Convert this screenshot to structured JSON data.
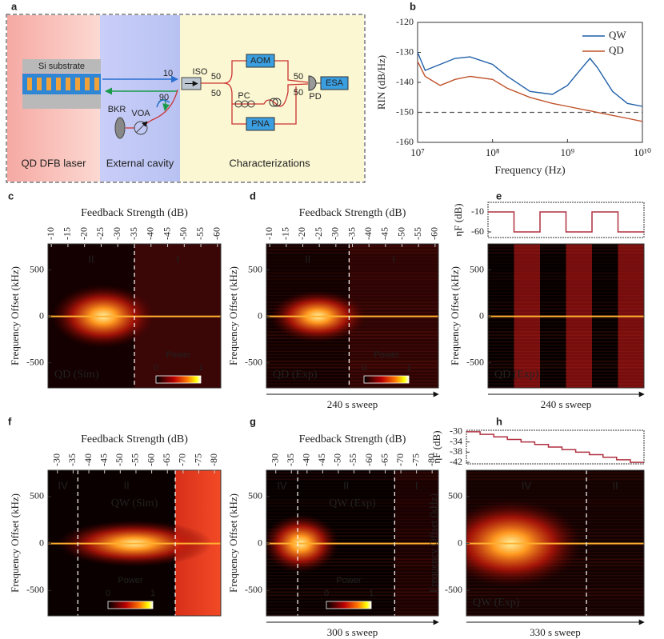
{
  "panel_labels": [
    "a",
    "b",
    "c",
    "d",
    "e",
    "f",
    "g",
    "h"
  ],
  "diagram": {
    "sections": [
      "QD DFB laser",
      "External cavity",
      "Characterizations"
    ],
    "substrate": "Si substrate",
    "ratios": [
      "10",
      "90"
    ],
    "isolator": "ISO",
    "couplers": [
      "50",
      "50",
      "50",
      "50"
    ],
    "aom": "AOM",
    "pc": "PC",
    "pd": "PD",
    "esa": "ESA",
    "pna": "PNA",
    "bkr": "BKR",
    "voa": "VOA"
  },
  "chart_data": [
    {
      "type": "line",
      "x_label": "Frequency (Hz)",
      "y_label": "RIN (dB/Hz)",
      "log_x": true,
      "xlim": [
        10000000,
        10000000000
      ],
      "xticks": [
        {
          "value": 10000000,
          "label": "10⁷"
        },
        {
          "value": 100000000,
          "label": "10⁸"
        },
        {
          "value": 1000000000,
          "label": "10⁹"
        },
        {
          "value": 10000000000,
          "label": "10¹⁰"
        }
      ],
      "ylim": [
        -160,
        -120
      ],
      "yticks": [
        -120,
        -130,
        -140,
        -150,
        -160
      ],
      "reference_line": -150,
      "legend": "upper right",
      "x": [
        10000000,
        12600000,
        20000000,
        31600000,
        50000000,
        100000000,
        158000000,
        316000000,
        630000000,
        1000000000,
        1580000000,
        2000000000,
        2500000000,
        4000000000,
        6300000000,
        10000000000
      ],
      "series": [
        {
          "name": "QW",
          "color": "#1f5fa8",
          "values": [
            -130,
            -136,
            -134,
            -132,
            -131.5,
            -134,
            -138,
            -143,
            -144,
            -141,
            -135,
            -132,
            -135,
            -143,
            -147,
            -148
          ]
        },
        {
          "name": "QD",
          "color": "#c0532b",
          "values": [
            -133,
            -138,
            -141,
            -139,
            -138,
            -139,
            -142,
            -145,
            -147,
            -148,
            -149,
            -149.5,
            -150,
            -151,
            -152,
            -153
          ]
        }
      ]
    },
    {
      "type": "heatmap",
      "x_label": "Feedback Strength (dB)",
      "xlim": [
        -9,
        -61
      ],
      "xticks": [
        -10,
        -15,
        -20,
        -25,
        -30,
        -35,
        -40,
        -45,
        -50,
        -55,
        -60
      ],
      "y_label": "Frequency Offset (kHz)",
      "ylim": [
        -770,
        780
      ],
      "yticks": [
        500,
        0,
        -500
      ],
      "boundaries": [
        -35
      ],
      "regions": [
        "II",
        "I"
      ],
      "annotation": "QD (Sim)",
      "colorbar": {
        "label": "Power",
        "ticks": [
          0,
          1
        ]
      }
    },
    {
      "type": "heatmap",
      "x_label": "Feedback Strength (dB)",
      "xlim": [
        -9,
        -61
      ],
      "xticks": [
        -10,
        -15,
        -20,
        -25,
        -30,
        -35,
        -40,
        -45,
        -50,
        -55,
        -60
      ],
      "y_label": "Frequency Offset (kHz)",
      "ylim": [
        -770,
        780
      ],
      "yticks": [
        500,
        0,
        -500
      ],
      "boundaries": [
        -34
      ],
      "regions": [
        "II",
        "I"
      ],
      "annotation": "QD (Exp)",
      "colorbar": {
        "label": "Power",
        "ticks": [
          0,
          1
        ]
      },
      "sweep": "240 s sweep"
    },
    {
      "type": "step",
      "y_label": "ηF (dB)",
      "ylim": [
        -74,
        14
      ],
      "yticks": [
        -10,
        -60
      ],
      "color": "#b03040",
      "values": [
        -10,
        -60,
        -10,
        -60,
        -10,
        -60
      ]
    },
    {
      "type": "heatmap",
      "y_label": "Frequency Offset (kHz)",
      "ylim": [
        -770,
        780
      ],
      "yticks": [
        500,
        0,
        -500
      ],
      "annotation": "QD (Exp)",
      "sweep": "240 s sweep"
    },
    {
      "type": "heatmap",
      "x_label": "Feedback Strength (dB)",
      "xlim": [
        -27,
        -82
      ],
      "xticks": [
        -30,
        -35,
        -40,
        -45,
        -50,
        -55,
        -60,
        -65,
        -70,
        -75,
        -80
      ],
      "y_label": "Frequency Offset (kHz)",
      "ylim": [
        -770,
        780
      ],
      "yticks": [
        500,
        0,
        -500
      ],
      "boundaries": [
        -36.5,
        -67.5
      ],
      "regions": [
        "IV",
        "II",
        null
      ],
      "annotation": "QW (Sim)",
      "colorbar": {
        "label": "Power",
        "ticks": [
          0,
          1
        ]
      }
    },
    {
      "type": "heatmap",
      "x_label": "Feedback Strength (dB)",
      "xlim": [
        -27,
        -82
      ],
      "xticks": [
        -30,
        -35,
        -40,
        -45,
        -50,
        -55,
        -60,
        -65,
        -70,
        -75,
        -80
      ],
      "y_label": "Frequency Offset (kHz)",
      "ylim": [
        -770,
        780
      ],
      "yticks": [
        500,
        0,
        -500
      ],
      "boundaries": [
        -37,
        -68
      ],
      "regions": [
        "IV",
        "II",
        "I"
      ],
      "annotation": "QW (Exp)",
      "colorbar": {
        "label": "Power",
        "ticks": [
          0,
          1
        ]
      },
      "sweep": "300 s sweep"
    },
    {
      "type": "step",
      "y_label": "ηF (dB)",
      "ylim": [
        -42.6,
        -29.4
      ],
      "yticks": [
        -30,
        -34,
        -38,
        -42
      ],
      "color": "#b03040",
      "values": [
        -30,
        -31,
        -32,
        -33,
        -34,
        -35,
        -36,
        -37,
        -38,
        -39,
        -40,
        -41,
        -42
      ]
    },
    {
      "type": "heatmap",
      "y_label": "Frequency Offset (kHz)",
      "ylim": [
        -770,
        780
      ],
      "yticks": [
        500,
        0,
        -500
      ],
      "regions": [
        "IV",
        "II"
      ],
      "annotation": "QW (Exp)",
      "sweep": "330 s sweep"
    }
  ]
}
